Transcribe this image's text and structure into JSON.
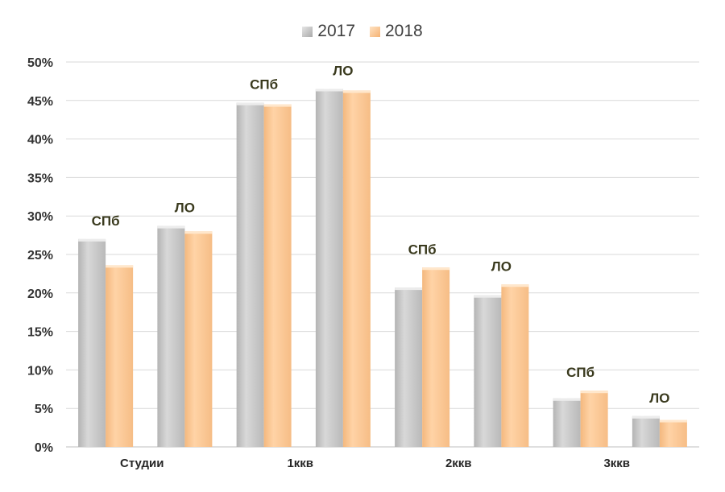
{
  "chart_data": {
    "type": "bar",
    "title": "",
    "xlabel": "",
    "ylabel": "",
    "ylim": [
      0,
      0.5
    ],
    "yticks": [
      "0%",
      "5%",
      "10%",
      "15%",
      "20%",
      "25%",
      "30%",
      "35%",
      "40%",
      "45%",
      "50%"
    ],
    "grid": true,
    "legend_position": "top-center",
    "categories": [
      "Студии",
      "1ккв",
      "2ккв",
      "3ккв"
    ],
    "groups": [
      "СПб",
      "ЛО"
    ],
    "series": [
      {
        "name": "2017",
        "color": "#c8c8c8",
        "values": [
          [
            0.27,
            0.287
          ],
          [
            0.447,
            0.465
          ],
          [
            0.207,
            0.197
          ],
          [
            0.063,
            0.04
          ]
        ]
      },
      {
        "name": "2018",
        "color": "#fdc896",
        "values": [
          [
            0.236,
            0.28
          ],
          [
            0.445,
            0.463
          ],
          [
            0.233,
            0.211
          ],
          [
            0.073,
            0.035
          ]
        ]
      }
    ]
  }
}
